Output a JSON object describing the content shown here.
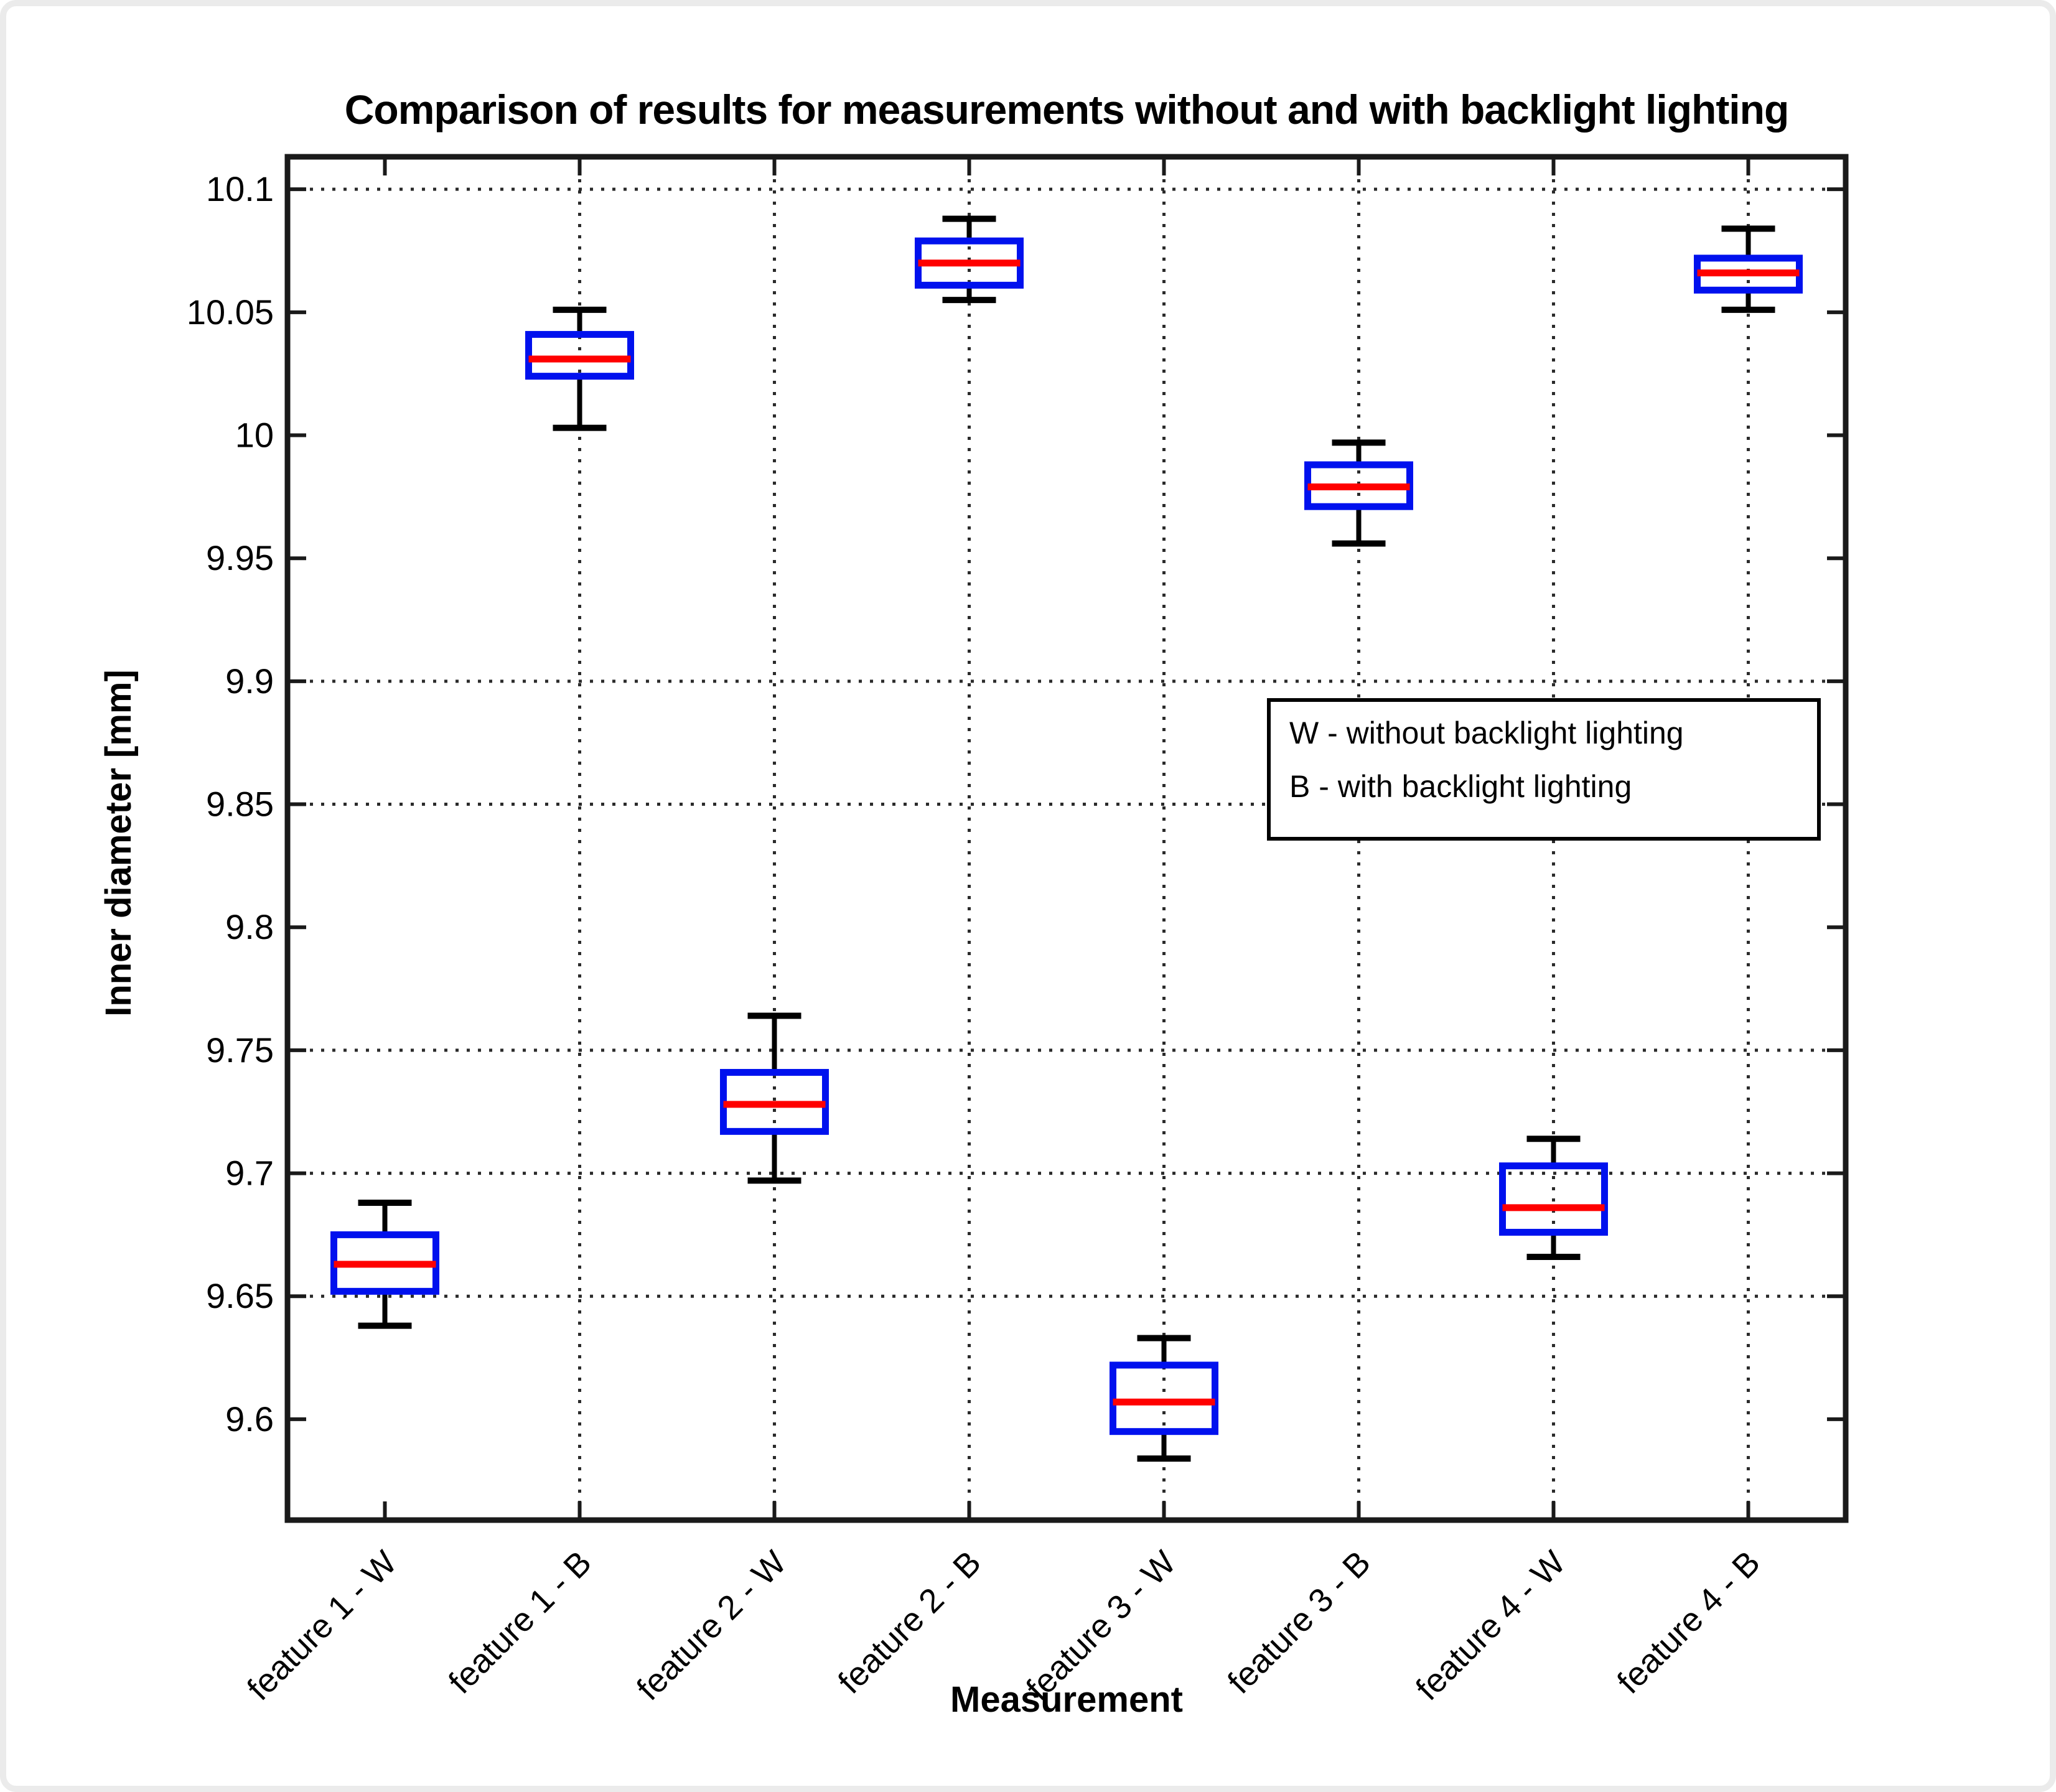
{
  "window": {
    "background": "#ffffff",
    "frame_color": "#ebebeb"
  },
  "chart_data": {
    "type": "boxplot",
    "title": "Comparison of results for measurements without and with backlight lighting",
    "xlabel": "Measurement",
    "ylabel": "Inner diameter [mm]",
    "ylim": [
      9.559,
      10.1132
    ],
    "yticks": {
      "values": [
        10.1,
        10.05,
        10,
        9.95,
        9.9,
        9.85,
        9.8,
        9.75,
        9.7,
        9.65,
        9.6
      ],
      "labels": [
        "10.1",
        "10.05",
        "10",
        "9.95",
        "9.9",
        "9.85",
        "9.8",
        "9.75",
        "9.7",
        "9.65",
        "9.6"
      ]
    },
    "grid": {
      "style": "dotted",
      "horizontal_at": [
        10.1,
        9.9,
        9.85,
        9.75,
        9.7,
        9.65
      ],
      "vertical_at_category_indexes": [
        1,
        2,
        3,
        4,
        5,
        6,
        7
      ]
    },
    "categories": [
      "feature 1 - W",
      "feature 1 - B",
      "feature 2 - W",
      "feature 2 - B",
      "feature 3 - W",
      "feature 3 - B",
      "feature 4 - W",
      "feature 4 - B"
    ],
    "boxes": [
      {
        "label": "feature 1 - W",
        "whisker_low": 9.638,
        "q1": 9.652,
        "median": 9.663,
        "q3": 9.675,
        "whisker_high": 9.688
      },
      {
        "label": "feature 1 - B",
        "whisker_low": 10.003,
        "q1": 10.024,
        "median": 10.031,
        "q3": 10.041,
        "whisker_high": 10.051
      },
      {
        "label": "feature 2 - W",
        "whisker_low": 9.697,
        "q1": 9.717,
        "median": 9.728,
        "q3": 9.741,
        "whisker_high": 9.764
      },
      {
        "label": "feature 2 - B",
        "whisker_low": 10.055,
        "q1": 10.061,
        "median": 10.07,
        "q3": 10.079,
        "whisker_high": 10.088
      },
      {
        "label": "feature 3 - W",
        "whisker_low": 9.584,
        "q1": 9.595,
        "median": 9.607,
        "q3": 9.622,
        "whisker_high": 9.633
      },
      {
        "label": "feature 3 - B",
        "whisker_low": 9.956,
        "q1": 9.971,
        "median": 9.979,
        "q3": 9.988,
        "whisker_high": 9.997
      },
      {
        "label": "feature 4 - W",
        "whisker_low": 9.666,
        "q1": 9.676,
        "median": 9.686,
        "q3": 9.703,
        "whisker_high": 9.714
      },
      {
        "label": "feature 4 - B",
        "whisker_low": 10.051,
        "q1": 10.059,
        "median": 10.066,
        "q3": 10.072,
        "whisker_high": 10.084
      }
    ],
    "colors": {
      "box": "#0011ee",
      "median": "#ff0000",
      "whisker": "#000000",
      "axis": "#1a1a1a",
      "grid": "#2b2b2b"
    },
    "legend": {
      "position": "inside-upper-right",
      "lines": [
        "W - without backlight lighting",
        "B - with backlight lighting"
      ]
    }
  }
}
